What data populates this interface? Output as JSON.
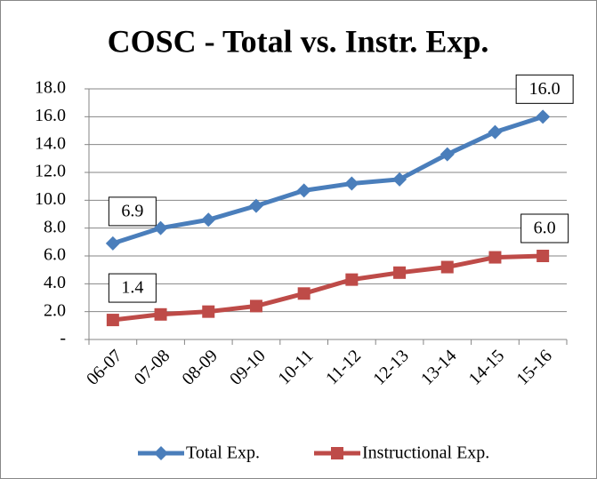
{
  "chart_data": {
    "type": "line",
    "title": "COSC - Total vs. Instr.  Exp.",
    "categories": [
      "06-07",
      "07-08",
      "08-09",
      "09-10",
      "10-11",
      "11-12",
      "12-13",
      "13-14",
      "14-15",
      "15-16"
    ],
    "series": [
      {
        "name": "Total Exp.",
        "color": "#4a7ebb",
        "marker": "diamond",
        "values": [
          6.9,
          8.0,
          8.6,
          9.6,
          10.7,
          11.2,
          11.5,
          13.3,
          14.9,
          16.0
        ],
        "value_labels": [
          "6.9",
          null,
          null,
          null,
          null,
          null,
          null,
          null,
          null,
          "16.0"
        ]
      },
      {
        "name": "Instructional Exp.",
        "color": "#be4b48",
        "marker": "square",
        "values": [
          1.4,
          1.8,
          2.0,
          2.4,
          3.3,
          4.3,
          4.8,
          5.2,
          5.9,
          6.0
        ],
        "value_labels": [
          "1.4",
          null,
          null,
          null,
          null,
          null,
          null,
          null,
          null,
          "6.0"
        ]
      }
    ],
    "ylim": [
      0,
      18
    ],
    "yticks": [
      {
        "value": 0,
        "label": "-"
      },
      {
        "value": 2,
        "label": "2.0"
      },
      {
        "value": 4,
        "label": "4.0"
      },
      {
        "value": 6,
        "label": "6.0"
      },
      {
        "value": 8,
        "label": "8.0"
      },
      {
        "value": 10,
        "label": "10.0"
      },
      {
        "value": 12,
        "label": "12.0"
      },
      {
        "value": 14,
        "label": "14.0"
      },
      {
        "value": 16,
        "label": "16.0"
      },
      {
        "value": 18,
        "label": "18.0"
      }
    ],
    "grid": true,
    "legend": "bottom"
  }
}
